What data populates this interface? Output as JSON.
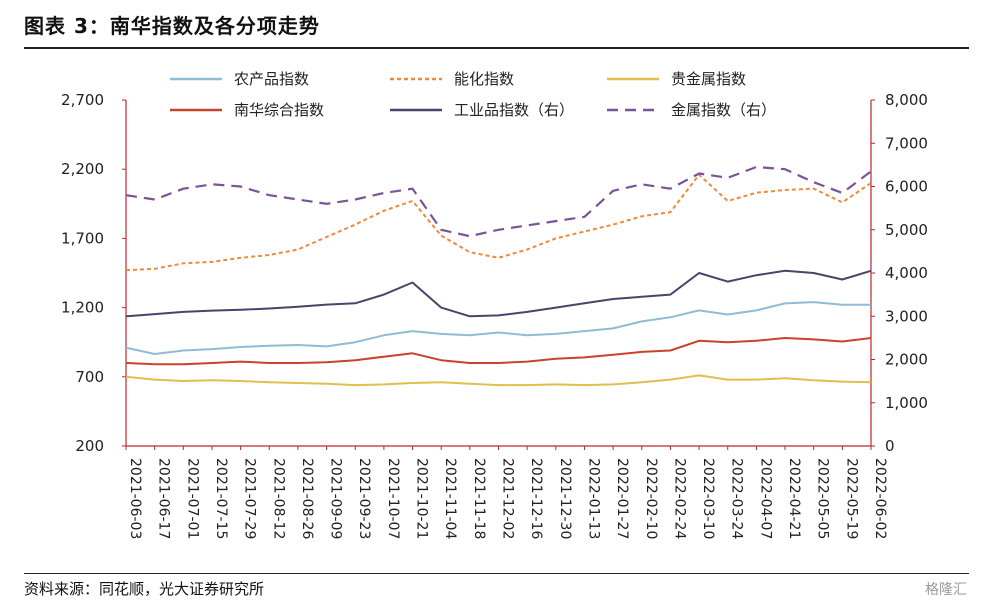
{
  "title": "图表 3：南华指数及各分项走势",
  "source": "资料来源：同花顺，光大证券研究所",
  "watermark": "格隆汇",
  "chart_data": {
    "type": "line",
    "x": [
      "2021-06-03",
      "2021-06-17",
      "2021-07-01",
      "2021-07-15",
      "2021-07-29",
      "2021-08-12",
      "2021-08-26",
      "2021-09-09",
      "2021-09-23",
      "2021-10-07",
      "2021-10-21",
      "2021-11-04",
      "2021-11-18",
      "2021-12-02",
      "2021-12-16",
      "2021-12-30",
      "2022-01-13",
      "2022-01-27",
      "2022-02-10",
      "2022-02-24",
      "2022-03-10",
      "2022-03-24",
      "2022-04-07",
      "2022-04-21",
      "2022-05-05",
      "2022-05-19",
      "2022-06-02"
    ],
    "y_left": {
      "ticks": [
        200,
        700,
        1200,
        1700,
        2200,
        2700
      ],
      "tick_labels": [
        "200",
        "700",
        "1,200",
        "1,700",
        "2,200",
        "2,700"
      ],
      "ylim": [
        200,
        2700
      ]
    },
    "y_right": {
      "ticks": [
        0,
        1000,
        2000,
        3000,
        4000,
        5000,
        6000,
        7000,
        8000
      ],
      "tick_labels": [
        "0",
        "1,000",
        "2,000",
        "3,000",
        "4,000",
        "5,000",
        "6,000",
        "7,000",
        "8,000"
      ],
      "ylim": [
        0,
        8000
      ]
    },
    "legend_position": "top",
    "series": [
      {
        "name": "农产品指数",
        "axis": "left",
        "color": "#8fbcd4",
        "dash": "solid",
        "values": [
          910,
          865,
          890,
          900,
          915,
          925,
          930,
          920,
          950,
          1000,
          1030,
          1010,
          1000,
          1020,
          1000,
          1010,
          1030,
          1050,
          1100,
          1130,
          1180,
          1150,
          1180,
          1230,
          1240,
          1220,
          1220
        ]
      },
      {
        "name": "能化指数",
        "axis": "left",
        "color": "#ef8a3c",
        "dash": "dotted",
        "values": [
          1470,
          1480,
          1520,
          1530,
          1560,
          1580,
          1620,
          1710,
          1800,
          1900,
          1970,
          1720,
          1600,
          1560,
          1620,
          1700,
          1750,
          1800,
          1860,
          1890,
          2160,
          1970,
          2030,
          2050,
          2060,
          1960,
          2100
        ]
      },
      {
        "name": "贵金属指数",
        "axis": "left",
        "color": "#e0bf4e",
        "dash": "solid",
        "values": [
          700,
          680,
          670,
          675,
          670,
          660,
          655,
          650,
          640,
          645,
          655,
          660,
          650,
          640,
          640,
          645,
          640,
          645,
          660,
          680,
          710,
          680,
          680,
          690,
          675,
          665,
          660
        ]
      },
      {
        "name": "南华综合指数",
        "axis": "left",
        "color": "#c9432a",
        "dash": "solid",
        "values": [
          800,
          790,
          790,
          800,
          810,
          800,
          800,
          805,
          820,
          845,
          870,
          820,
          800,
          800,
          810,
          830,
          840,
          860,
          880,
          890,
          960,
          950,
          960,
          980,
          970,
          955,
          980
        ]
      },
      {
        "name": "工业品指数（右）",
        "axis": "right",
        "color": "#4a4468",
        "dash": "solid",
        "values": [
          3000,
          3050,
          3100,
          3130,
          3150,
          3180,
          3220,
          3270,
          3300,
          3500,
          3780,
          3200,
          3000,
          3020,
          3100,
          3200,
          3300,
          3400,
          3450,
          3500,
          4000,
          3800,
          3950,
          4050,
          4000,
          3850,
          4050
        ]
      },
      {
        "name": "金属指数（右）",
        "axis": "right",
        "color": "#7b5497",
        "dash": "dashed",
        "values": [
          5800,
          5700,
          5950,
          6050,
          6000,
          5800,
          5700,
          5600,
          5700,
          5850,
          5950,
          5000,
          4850,
          5000,
          5100,
          5200,
          5300,
          5900,
          6050,
          5950,
          6300,
          6200,
          6450,
          6400,
          6100,
          5850,
          6350
        ]
      }
    ]
  }
}
